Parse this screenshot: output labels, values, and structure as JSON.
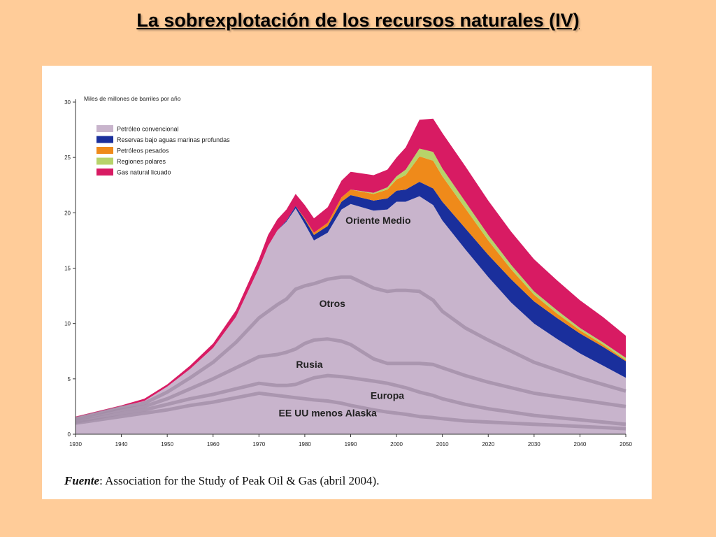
{
  "slide": {
    "title": "La sobrexplotación de los recursos naturales (IV)"
  },
  "source": {
    "label": "Fuente",
    "text": ": Association for the Study of Peak Oil & Gas (abril 2004)."
  },
  "chart_data": {
    "type": "area",
    "title": "",
    "ylabel": "Miles de millones de barriles por año",
    "xlabel": "",
    "xlim": [
      1930,
      2050
    ],
    "ylim": [
      0,
      30
    ],
    "x_ticks": [
      1930,
      1940,
      1950,
      1960,
      1970,
      1980,
      1990,
      2000,
      2010,
      2020,
      2030,
      2040,
      2050
    ],
    "y_ticks": [
      0,
      5,
      10,
      15,
      20,
      25,
      30
    ],
    "grid": false,
    "legend_position": "top-left",
    "legend": [
      {
        "name": "Petróleo convencional",
        "color": "#c8b4cc"
      },
      {
        "name": "Reservas bajo aguas marinas profundas",
        "color": "#1a2f9c"
      },
      {
        "name": "Petróleos pesados",
        "color": "#ef8a1a"
      },
      {
        "name": "Regiones polares",
        "color": "#b7d36a"
      },
      {
        "name": "Gas natural licuado",
        "color": "#d81b63"
      }
    ],
    "region_labels": [
      "EE UU menos Alaska",
      "Europa",
      "Rusia",
      "Otros",
      "Oriente Medio"
    ],
    "x": [
      1930,
      1940,
      1945,
      1950,
      1955,
      1960,
      1965,
      1970,
      1972,
      1974,
      1976,
      1978,
      1980,
      1982,
      1985,
      1988,
      1990,
      1995,
      1998,
      2000,
      2002,
      2005,
      2008,
      2010,
      2015,
      2020,
      2025,
      2030,
      2035,
      2040,
      2045,
      2050
    ],
    "conventional_bands": [
      {
        "name": "EE UU menos Alaska",
        "values": [
          1.0,
          1.6,
          1.9,
          2.2,
          2.6,
          2.9,
          3.3,
          3.7,
          3.6,
          3.5,
          3.4,
          3.3,
          3.2,
          3.1,
          3.0,
          2.8,
          2.6,
          2.2,
          2.0,
          1.9,
          1.8,
          1.6,
          1.5,
          1.4,
          1.2,
          1.1,
          1.0,
          0.9,
          0.8,
          0.7,
          0.6,
          0.5
        ]
      },
      {
        "name": "Europa",
        "values": [
          0.1,
          0.3,
          0.3,
          0.5,
          0.6,
          0.7,
          0.8,
          0.9,
          0.9,
          0.9,
          1.0,
          1.2,
          1.6,
          2.0,
          2.3,
          2.4,
          2.5,
          2.6,
          2.6,
          2.5,
          2.4,
          2.2,
          2.0,
          1.8,
          1.5,
          1.2,
          1.0,
          0.8,
          0.7,
          0.6,
          0.5,
          0.4
        ]
      },
      {
        "name": "Rusia",
        "values": [
          0.2,
          0.3,
          0.3,
          0.5,
          0.9,
          1.4,
          1.9,
          2.4,
          2.6,
          2.8,
          3.0,
          3.2,
          3.4,
          3.4,
          3.3,
          3.2,
          3.0,
          2.0,
          1.8,
          2.0,
          2.2,
          2.6,
          2.8,
          2.8,
          2.6,
          2.4,
          2.2,
          2.0,
          1.9,
          1.8,
          1.7,
          1.6
        ]
      },
      {
        "name": "Otros",
        "values": [
          0.1,
          0.2,
          0.3,
          0.6,
          1.0,
          1.5,
          2.3,
          3.5,
          4.0,
          4.5,
          4.8,
          5.4,
          5.2,
          5.1,
          5.4,
          5.8,
          6.1,
          6.4,
          6.5,
          6.6,
          6.6,
          6.5,
          5.8,
          5.1,
          4.3,
          3.8,
          3.3,
          2.8,
          2.4,
          2.0,
          1.7,
          1.4
        ]
      },
      {
        "name": "Oriente Medio",
        "values": [
          0.1,
          0.1,
          0.2,
          0.5,
          0.8,
          1.3,
          2.3,
          4.5,
          5.9,
          6.7,
          7.0,
          7.3,
          5.6,
          3.9,
          4.2,
          6.1,
          6.6,
          7.0,
          7.4,
          8.0,
          8.0,
          8.6,
          8.6,
          8.2,
          7.1,
          5.7,
          4.4,
          3.5,
          2.8,
          2.2,
          1.7,
          1.2
        ]
      }
    ],
    "series": [
      {
        "name": "Petróleo convencional",
        "values": [
          1.5,
          2.5,
          3.0,
          4.3,
          5.9,
          7.8,
          10.6,
          15.0,
          17.0,
          18.4,
          19.2,
          20.4,
          19.0,
          17.5,
          18.2,
          20.3,
          20.8,
          20.2,
          20.3,
          21.0,
          21.0,
          21.5,
          20.7,
          19.3,
          16.7,
          14.2,
          11.9,
          10.0,
          8.6,
          7.3,
          6.2,
          5.1
        ]
      },
      {
        "name": "Reservas bajo aguas marinas profundas",
        "values": [
          0,
          0,
          0,
          0,
          0,
          0,
          0,
          0,
          0,
          0,
          0.1,
          0.2,
          0.4,
          0.5,
          0.6,
          0.7,
          0.8,
          0.9,
          1.0,
          1.0,
          1.1,
          1.3,
          1.5,
          1.7,
          1.9,
          2.0,
          2.1,
          2.0,
          1.9,
          1.8,
          1.7,
          1.5
        ]
      },
      {
        "name": "Petróleos pesados",
        "values": [
          0,
          0,
          0,
          0,
          0,
          0,
          0,
          0,
          0,
          0,
          0,
          0,
          0.1,
          0.2,
          0.3,
          0.4,
          0.5,
          0.6,
          0.8,
          1.0,
          1.3,
          2.3,
          2.5,
          2.3,
          1.8,
          1.3,
          0.9,
          0.6,
          0.4,
          0.3,
          0.2,
          0.1
        ]
      },
      {
        "name": "Regiones polares",
        "values": [
          0,
          0,
          0,
          0,
          0,
          0,
          0,
          0,
          0,
          0,
          0,
          0,
          0,
          0,
          0,
          0,
          0,
          0.1,
          0.2,
          0.3,
          0.5,
          0.7,
          0.8,
          0.7,
          0.6,
          0.5,
          0.4,
          0.3,
          0.3,
          0.2,
          0.2,
          0.2
        ]
      },
      {
        "name": "Gas natural licuado",
        "values": [
          0.1,
          0.1,
          0.2,
          0.2,
          0.3,
          0.4,
          0.6,
          0.8,
          1.0,
          1.0,
          1.0,
          1.1,
          1.2,
          1.3,
          1.4,
          1.5,
          1.6,
          1.6,
          1.6,
          1.7,
          2.0,
          2.6,
          3.0,
          3.2,
          3.2,
          3.1,
          3.0,
          2.9,
          2.7,
          2.5,
          2.3,
          2.0
        ]
      }
    ]
  }
}
